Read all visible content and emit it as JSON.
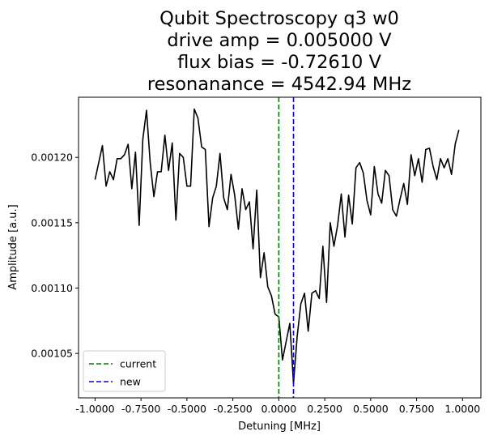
{
  "chart_data": {
    "type": "line",
    "title_lines": [
      "Qubit Spectroscopy q3 w0",
      "drive amp = 0.005000 V",
      "flux bias = -0.72610 V",
      "resonanance = 4542.94 MHz"
    ],
    "xlabel": "Detuning [MHz]",
    "ylabel": "Amplitude [a.u.]",
    "xlim": [
      -1.09,
      1.1
    ],
    "ylim": [
      0.001016,
      0.001246
    ],
    "x_ticks": [
      -1.0,
      -0.75,
      -0.5,
      -0.25,
      0.0,
      0.25,
      0.5,
      0.75,
      1.0
    ],
    "x_tick_labels": [
      "-1.0000",
      "-0.7500",
      "-0.5000",
      "-0.2500",
      "0.0000",
      "0.2500",
      "0.5000",
      "0.7500",
      "1.0000"
    ],
    "y_ticks": [
      0.00105,
      0.0011,
      0.00115,
      0.0012
    ],
    "y_tick_labels": [
      "0.00105",
      "0.00110",
      "0.00115",
      "0.00120"
    ],
    "grid": false,
    "legend_position": "lower-left",
    "series": [
      {
        "kind": "data",
        "color": "#000000",
        "x_start": -1.0,
        "x_step": 0.02,
        "values": [
          0.001183,
          0.001196,
          0.001209,
          0.001178,
          0.001189,
          0.001183,
          0.001199,
          0.001199,
          0.001202,
          0.00121,
          0.001176,
          0.001204,
          0.001148,
          0.001214,
          0.001236,
          0.001196,
          0.00117,
          0.001189,
          0.001189,
          0.001217,
          0.00119,
          0.001211,
          0.001152,
          0.001203,
          0.0012,
          0.001178,
          0.001178,
          0.001237,
          0.00123,
          0.001208,
          0.001206,
          0.001147,
          0.001169,
          0.001178,
          0.001203,
          0.001169,
          0.00116,
          0.001187,
          0.001171,
          0.001145,
          0.001176,
          0.00116,
          0.001166,
          0.00113,
          0.001175,
          0.001108,
          0.001127,
          0.001101,
          0.001094,
          0.00108,
          0.001078,
          0.001045,
          0.001059,
          0.001073,
          0.001027,
          0.001063,
          0.001088,
          0.001096,
          0.001067,
          0.001096,
          0.001098,
          0.001092,
          0.001132,
          0.001089,
          0.00115,
          0.001132,
          0.001148,
          0.001172,
          0.001139,
          0.001171,
          0.001149,
          0.001192,
          0.001196,
          0.001188,
          0.001167,
          0.001156,
          0.001193,
          0.001172,
          0.001165,
          0.00119,
          0.001186,
          0.00116,
          0.001155,
          0.001168,
          0.00118,
          0.001164,
          0.001202,
          0.001186,
          0.001199,
          0.001181,
          0.001206,
          0.001207,
          0.001193,
          0.001183,
          0.001199,
          0.001192,
          0.001199,
          0.001187,
          0.00121,
          0.001221
        ]
      }
    ],
    "markers": [
      {
        "name": "current",
        "x": 0.0,
        "color": "#008000",
        "style": "dashed"
      },
      {
        "name": "new",
        "x": 0.08,
        "color": "#0000ff",
        "style": "dashed"
      }
    ]
  }
}
